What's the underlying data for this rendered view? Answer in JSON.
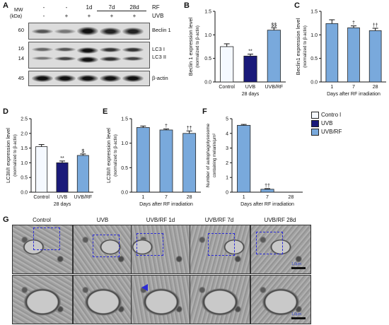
{
  "panels": [
    "A",
    "B",
    "C",
    "D",
    "E",
    "F",
    "G"
  ],
  "colors": {
    "control": "#f5f9ff",
    "uvb": "#1a1a7a",
    "uvb_rf": "#79a9dc",
    "scale_bar": "#ffffff",
    "box": "#2b2bd6"
  },
  "blot": {
    "mw_title": "MW",
    "mw_unit": "(kDa)",
    "rf_label": "RF",
    "uvb_label": "UVB",
    "rf_row": [
      "-",
      "-",
      "1d",
      "7d",
      "28d"
    ],
    "uvb_row": [
      "-",
      "+",
      "+",
      "+",
      "+"
    ],
    "rows": [
      {
        "mw": "60",
        "label": "Beclin 1"
      },
      {
        "mw": "16",
        "label": "LC3 I"
      },
      {
        "mw": "14",
        "label": "LC3 II"
      },
      {
        "mw": "45",
        "label": "β-actin"
      }
    ]
  },
  "legend": {
    "items": [
      {
        "label": "Contro l",
        "color": "#f5f9ff"
      },
      {
        "label": "UVB",
        "color": "#1a1a7a"
      },
      {
        "label": "UVB/RF",
        "color": "#79a9dc"
      }
    ]
  },
  "chart_data": [
    {
      "panel": "B",
      "type": "bar",
      "categories": [
        "Control",
        "UVB",
        "UVB/RF"
      ],
      "values": [
        0.75,
        0.55,
        1.1
      ],
      "errors": [
        0.06,
        0.04,
        0.05
      ],
      "annotations": [
        "",
        "**",
        "$$"
      ],
      "ylabel": "Beclin 1 expression level",
      "ylabel2": "(normalized to β-actin)",
      "xlabel": "28 days",
      "ylim": [
        0,
        1.5
      ],
      "yticks": [
        "0.0",
        "0.5",
        "1.0",
        "1.5"
      ]
    },
    {
      "panel": "C",
      "type": "bar",
      "categories": [
        "1",
        "7",
        "28"
      ],
      "values": [
        1.24,
        1.15,
        1.09
      ],
      "errors": [
        0.08,
        0.04,
        0.05
      ],
      "annotations": [
        "",
        "†",
        "††"
      ],
      "ylabel": "Beclin1 expression level",
      "ylabel2": "(normalized to β-actin)",
      "xlabel": "Days after RF irradiation",
      "ylim": [
        0,
        1.5
      ],
      "yticks": [
        "0.0",
        "0.5",
        "1.0",
        "1.5"
      ]
    },
    {
      "panel": "D",
      "type": "bar",
      "categories": [
        "Control",
        "UVB",
        "UVB/RF"
      ],
      "values": [
        1.55,
        1.0,
        1.25
      ],
      "errors": [
        0.07,
        0.06,
        0.05
      ],
      "annotations": [
        "",
        "**",
        "$"
      ],
      "ylabel": "LC3II/I expression level",
      "ylabel2": "(normalized to β-actin)",
      "xlabel": "28 days",
      "ylim": [
        0,
        2.5
      ],
      "yticks": [
        "0.0",
        "0.5",
        "1.0",
        "1.5",
        "2.0",
        "2.5"
      ]
    },
    {
      "panel": "E",
      "type": "bar",
      "categories": [
        "1",
        "7",
        "28"
      ],
      "values": [
        1.32,
        1.27,
        1.2
      ],
      "errors": [
        0.03,
        0.02,
        0.05
      ],
      "annotations": [
        "",
        "†",
        "††"
      ],
      "ylabel": "LC3II/I expression level",
      "ylabel2": "(normalized to β-actin)",
      "xlabel": "Days after RF irradiation",
      "ylim": [
        0,
        1.5
      ],
      "yticks": [
        "0.0",
        "0.5",
        "1.0",
        "1.5"
      ]
    },
    {
      "panel": "F",
      "type": "bar",
      "categories": [
        "1",
        "7",
        "28"
      ],
      "values": [
        4.55,
        0.2,
        0.0
      ],
      "errors": [
        0.06,
        0.04,
        0.0
      ],
      "annotations": [
        "",
        "††",
        ""
      ],
      "ylabel": "Number of autophagolysosome",
      "ylabel2": "containing melanin/μm²",
      "xlabel": "Days after RF irradiation",
      "ylim": [
        0,
        5
      ],
      "yticks": [
        "0",
        "1",
        "2",
        "3",
        "4",
        "5"
      ]
    }
  ],
  "em": {
    "columns": [
      "Control",
      "UVB",
      "UVB/RF 1d",
      "UVB/RF 7d",
      "UVB/RF 28d"
    ],
    "scale_top": "1.0μm",
    "scale_bottom": "1.0μm"
  }
}
